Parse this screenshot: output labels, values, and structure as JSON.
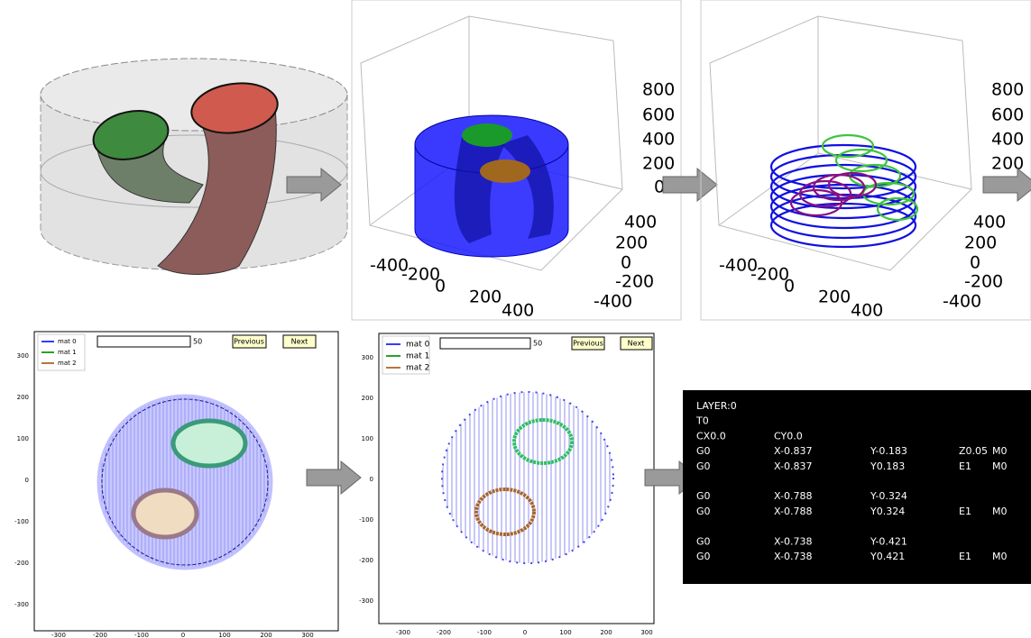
{
  "render3d": {
    "z_ticks": [
      "800",
      "600",
      "400",
      "200",
      "0"
    ],
    "x_ticks": [
      "-400",
      "-200",
      "0",
      "200",
      "400"
    ],
    "y_ticks": [
      "400",
      "200",
      "0",
      "-200",
      "-400"
    ]
  },
  "contours3d": {
    "z_ticks": [
      "800",
      "600",
      "400",
      "200",
      "0"
    ],
    "x_ticks": [
      "-400",
      "-200",
      "0",
      "200",
      "400"
    ],
    "y_ticks": [
      "400",
      "200",
      "0",
      "-200",
      "-400"
    ]
  },
  "slice_view": {
    "legend": [
      "mat 0",
      "mat 1",
      "mat 2"
    ],
    "input_value": "50",
    "buttons": [
      "Previous",
      "Next"
    ],
    "y_ticks": [
      "300",
      "200",
      "100",
      "0",
      "-100",
      "-200",
      "-300"
    ],
    "x_ticks": [
      "-300",
      "-200",
      "-100",
      "0",
      "100",
      "200",
      "300"
    ]
  },
  "toolpath_view": {
    "legend": [
      "mat 0",
      "mat 1",
      "mat 2"
    ],
    "input_value": "50",
    "buttons": [
      "Previous",
      "Next"
    ],
    "y_ticks": [
      "300",
      "200",
      "100",
      "0",
      "-100",
      "-200",
      "-300"
    ],
    "x_ticks": [
      "-300",
      "-200",
      "-100",
      "0",
      "100",
      "200",
      "300"
    ]
  },
  "gcode": {
    "blocks": [
      [
        [
          "LAYER:0"
        ],
        [
          "T0"
        ],
        [
          "CX0.0",
          "CY0.0"
        ],
        [
          "G0",
          "X-0.837",
          "Y-0.183",
          "Z0.05",
          "M0"
        ],
        [
          "G0",
          "X-0.837",
          "Y0.183",
          "E1",
          "M0"
        ]
      ],
      [
        [
          "G0",
          "X-0.788",
          "Y-0.324"
        ],
        [
          "G0",
          "X-0.788",
          "Y0.324",
          "E1",
          "M0"
        ]
      ],
      [
        [
          "G0",
          "X-0.738",
          "Y-0.421"
        ],
        [
          "G0",
          "X-0.738",
          "Y0.421",
          "E1",
          "M0"
        ]
      ]
    ]
  }
}
